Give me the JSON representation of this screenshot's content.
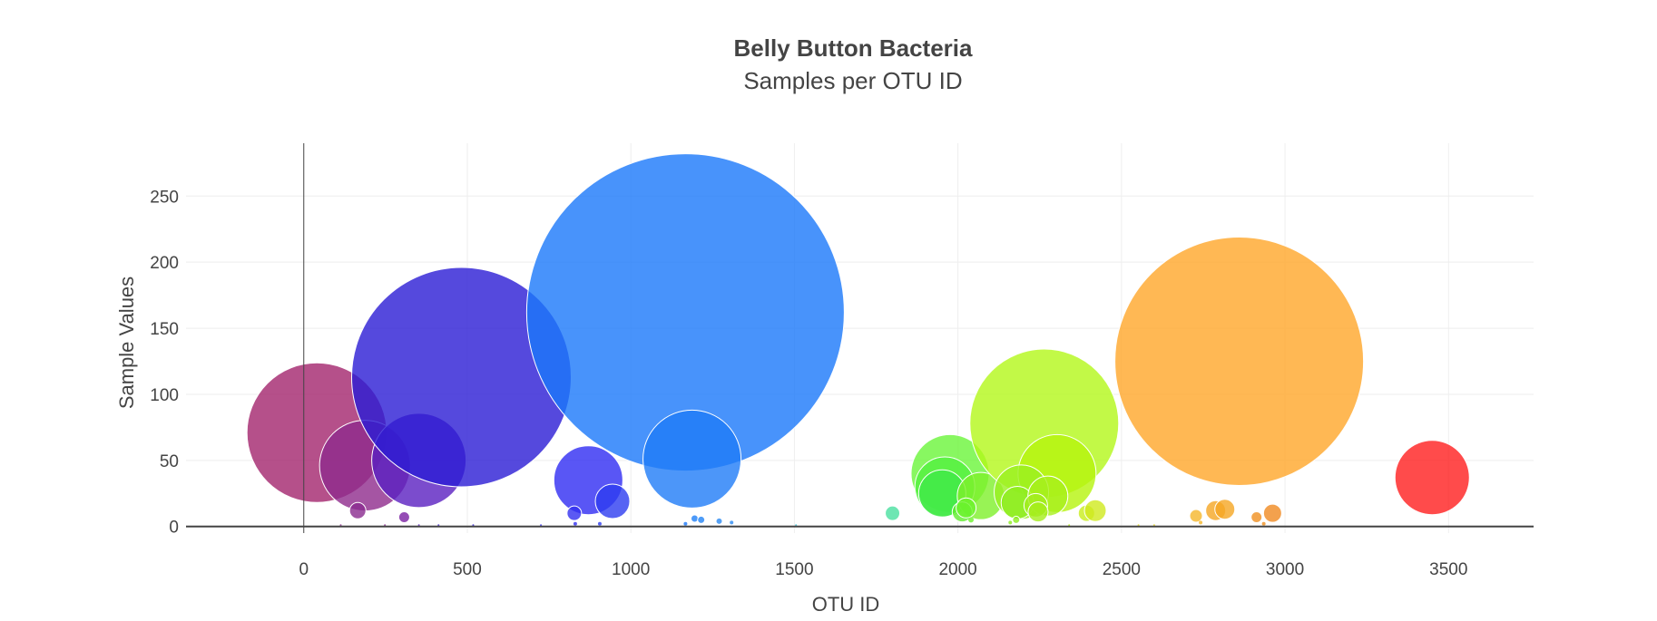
{
  "chart_data": {
    "type": "scatter",
    "title": "Belly Button Bacteria",
    "subtitle": "Samples per OTU ID",
    "xlabel": "OTU ID",
    "ylabel": "Sample Values",
    "xlim": [
      -360,
      3760
    ],
    "ylim": [
      -5,
      290
    ],
    "x_ticks": [
      0,
      500,
      1000,
      1500,
      2000,
      2500,
      3000,
      3500
    ],
    "y_ticks": [
      0,
      50,
      100,
      150,
      200,
      250
    ],
    "grid": true,
    "legend": false,
    "color_scale": "otu_id",
    "points": [
      {
        "x": 40,
        "y": 71,
        "r": 77,
        "color": "#a3246d"
      },
      {
        "x": 187,
        "y": 46,
        "r": 50,
        "color": "#8e2a8c"
      },
      {
        "x": 352,
        "y": 50,
        "r": 52,
        "color": "#5a1fc0"
      },
      {
        "x": 482,
        "y": 113,
        "r": 121,
        "color": "#2a1bd4"
      },
      {
        "x": 165,
        "y": 12,
        "r": 9,
        "color": "#8a2b8e"
      },
      {
        "x": 307,
        "y": 7,
        "r": 6,
        "color": "#7a20a2"
      },
      {
        "x": 870,
        "y": 35,
        "r": 38,
        "color": "#2f2cf2"
      },
      {
        "x": 944,
        "y": 19,
        "r": 19,
        "color": "#2d3cf0"
      },
      {
        "x": 827,
        "y": 10,
        "r": 8,
        "color": "#3230f0"
      },
      {
        "x": 1167,
        "y": 162,
        "r": 175,
        "color": "#1a78fa"
      },
      {
        "x": 1187,
        "y": 51,
        "r": 54,
        "color": "#1f7cf8"
      },
      {
        "x": 1195,
        "y": 6,
        "r": 4,
        "color": "#1f80f8"
      },
      {
        "x": 1215,
        "y": 5,
        "r": 4,
        "color": "#2283f5"
      },
      {
        "x": 1270,
        "y": 4,
        "r": 3,
        "color": "#2a8af2"
      },
      {
        "x": 1800,
        "y": 10,
        "r": 8,
        "color": "#4ae0a0"
      },
      {
        "x": 1976,
        "y": 40,
        "r": 43,
        "color": "#6af53a"
      },
      {
        "x": 1960,
        "y": 30,
        "r": 33,
        "color": "#52f040"
      },
      {
        "x": 1952,
        "y": 25,
        "r": 26,
        "color": "#40e848"
      },
      {
        "x": 2070,
        "y": 23,
        "r": 26,
        "color": "#7ef02a"
      },
      {
        "x": 2013,
        "y": 11,
        "r": 11,
        "color": "#62ee30"
      },
      {
        "x": 2025,
        "y": 14,
        "r": 11,
        "color": "#6cf22c"
      },
      {
        "x": 2264,
        "y": 78,
        "r": 82,
        "color": "#b3f819"
      },
      {
        "x": 2303,
        "y": 40,
        "r": 43,
        "color": "#b5f40c"
      },
      {
        "x": 2194,
        "y": 26,
        "r": 30,
        "color": "#9af020"
      },
      {
        "x": 2182,
        "y": 18,
        "r": 18,
        "color": "#8cec1e"
      },
      {
        "x": 2275,
        "y": 23,
        "r": 22,
        "color": "#a7f01c"
      },
      {
        "x": 2238,
        "y": 16,
        "r": 13,
        "color": "#a2ee1e"
      },
      {
        "x": 2245,
        "y": 11,
        "r": 11,
        "color": "#a5ee1c"
      },
      {
        "x": 2178,
        "y": 5,
        "r": 4,
        "color": "#8cec1e"
      },
      {
        "x": 2393,
        "y": 10,
        "r": 9,
        "color": "#c8ee1c"
      },
      {
        "x": 2420,
        "y": 12,
        "r": 12,
        "color": "#d0ea1e"
      },
      {
        "x": 2860,
        "y": 125,
        "r": 137,
        "color": "#ffa629"
      },
      {
        "x": 2788,
        "y": 12,
        "r": 11,
        "color": "#f5a623"
      },
      {
        "x": 2816,
        "y": 13,
        "r": 11,
        "color": "#f5a623"
      },
      {
        "x": 2728,
        "y": 8,
        "r": 7,
        "color": "#f5b62a"
      },
      {
        "x": 2962,
        "y": 10,
        "r": 10,
        "color": "#f08a20"
      },
      {
        "x": 2913,
        "y": 7,
        "r": 6,
        "color": "#f09020"
      },
      {
        "x": 3450,
        "y": 37,
        "r": 41,
        "color": "#ff1e1e"
      },
      {
        "x": 113,
        "y": 1,
        "r": 1,
        "color": "#8a2b8e"
      },
      {
        "x": 248,
        "y": 1,
        "r": 1,
        "color": "#8a2b8e"
      },
      {
        "x": 352,
        "y": 1,
        "r": 1,
        "color": "#5a1fc0"
      },
      {
        "x": 412,
        "y": 1,
        "r": 1,
        "color": "#3b1fc8"
      },
      {
        "x": 518,
        "y": 1,
        "r": 1,
        "color": "#2a1bd4"
      },
      {
        "x": 725,
        "y": 1,
        "r": 1,
        "color": "#2f2cf2"
      },
      {
        "x": 830,
        "y": 2,
        "r": 2,
        "color": "#3230f0"
      },
      {
        "x": 905,
        "y": 2,
        "r": 2,
        "color": "#2d3cf0"
      },
      {
        "x": 1167,
        "y": 2,
        "r": 2,
        "color": "#1a78fa"
      },
      {
        "x": 1308,
        "y": 3,
        "r": 2,
        "color": "#2a8af2"
      },
      {
        "x": 1505,
        "y": 1,
        "r": 1,
        "color": "#36c0d8"
      },
      {
        "x": 2040,
        "y": 5,
        "r": 3,
        "color": "#6cf22c"
      },
      {
        "x": 2160,
        "y": 3,
        "r": 2,
        "color": "#8cec1e"
      },
      {
        "x": 2340,
        "y": 1,
        "r": 1,
        "color": "#b5f40c"
      },
      {
        "x": 2552,
        "y": 1,
        "r": 1,
        "color": "#e8e01a"
      },
      {
        "x": 2600,
        "y": 1,
        "r": 1,
        "color": "#e8d81a"
      },
      {
        "x": 2742,
        "y": 3,
        "r": 2,
        "color": "#f5b62a"
      },
      {
        "x": 2935,
        "y": 2,
        "r": 2,
        "color": "#f09020"
      }
    ]
  }
}
